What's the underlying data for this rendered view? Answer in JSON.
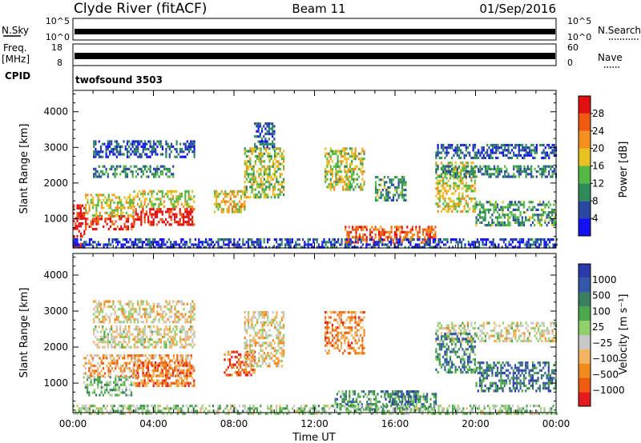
{
  "header": {
    "station": "Clyde River (fitACF)",
    "beam": "Beam 11",
    "date": "01/Sep/2016"
  },
  "strips": {
    "nsky": {
      "label": "N.Sky",
      "ticks": [
        "10^5",
        "10^0"
      ],
      "right_label": "N.Search",
      "right_ticks": [
        "10^5",
        "10^0"
      ]
    },
    "freq": {
      "label_line1": "Freq.",
      "label_line2": "[MHz]",
      "ticks": [
        "18",
        "8"
      ],
      "right_label": "Nave",
      "right_ticks": [
        "60",
        "0"
      ]
    },
    "cpid": {
      "label": "CPID",
      "value": "twofsound 3503"
    }
  },
  "colors": {
    "power": [
      "#1010f0",
      "#2848a0",
      "#2f8a5a",
      "#55b845",
      "#e8c020",
      "#f29020",
      "#f05a10",
      "#e01010"
    ],
    "velocity": [
      "#e41a1c",
      "#ee5c10",
      "#f08a1a",
      "#f5b460",
      "#c8c8c8",
      "#8fd06a",
      "#4aa84a",
      "#3a8060",
      "#3358a8",
      "#2a3aa8"
    ]
  },
  "chart_data": [
    {
      "type": "heatmap",
      "name": "power",
      "xlabel": "",
      "ylabel": "Slant Range [km]",
      "xlim": [
        0,
        24
      ],
      "ylim": [
        180,
        4600
      ],
      "yticks": [
        1000,
        2000,
        3000,
        4000
      ],
      "colorbar": {
        "label": "Power [dB]",
        "ticks": [
          4,
          8,
          12,
          16,
          20,
          24,
          28
        ],
        "range": [
          0,
          32
        ]
      },
      "regions": [
        {
          "t": [
            0.0,
            0.6
          ],
          "r": [
            180,
            1400
          ],
          "level": 0.95
        },
        {
          "t": [
            0.6,
            3.0
          ],
          "r": [
            700,
            1100
          ],
          "level": 0.9
        },
        {
          "t": [
            0.6,
            3.0
          ],
          "r": [
            1100,
            1700
          ],
          "level": 0.55
        },
        {
          "t": [
            3.0,
            6.0
          ],
          "r": [
            800,
            1300
          ],
          "level": 0.95
        },
        {
          "t": [
            3.0,
            6.0
          ],
          "r": [
            1300,
            1800
          ],
          "level": 0.55
        },
        {
          "t": [
            1.0,
            5.0
          ],
          "r": [
            2200,
            2500
          ],
          "level": 0.3
        },
        {
          "t": [
            1.0,
            6.0
          ],
          "r": [
            2700,
            3200
          ],
          "level": 0.2
        },
        {
          "t": [
            7.0,
            8.5
          ],
          "r": [
            1200,
            1800
          ],
          "level": 0.6
        },
        {
          "t": [
            8.5,
            10.5
          ],
          "r": [
            1600,
            3000
          ],
          "level": 0.5
        },
        {
          "t": [
            9.0,
            10.0
          ],
          "r": [
            3000,
            3700
          ],
          "level": 0.2
        },
        {
          "t": [
            12.5,
            14.5
          ],
          "r": [
            1800,
            3000
          ],
          "level": 0.5
        },
        {
          "t": [
            13.5,
            18.0
          ],
          "r": [
            300,
            800
          ],
          "level": 0.8
        },
        {
          "t": [
            15.0,
            16.5
          ],
          "r": [
            1500,
            2200
          ],
          "level": 0.35
        },
        {
          "t": [
            18.0,
            20.0
          ],
          "r": [
            1200,
            2600
          ],
          "level": 0.55
        },
        {
          "t": [
            18.0,
            24.0
          ],
          "r": [
            2200,
            2500
          ],
          "level": 0.3
        },
        {
          "t": [
            18.0,
            24.0
          ],
          "r": [
            2700,
            3100
          ],
          "level": 0.2
        },
        {
          "t": [
            20.0,
            24.0
          ],
          "r": [
            800,
            1500
          ],
          "level": 0.35
        },
        {
          "t": [
            0.0,
            24.0
          ],
          "r": [
            180,
            450
          ],
          "level": 0.15
        }
      ]
    },
    {
      "type": "heatmap",
      "name": "velocity",
      "xlabel": "Time UT",
      "ylabel": "Slant Range [km]",
      "xlim": [
        0,
        24
      ],
      "ylim": [
        180,
        4600
      ],
      "xticks": [
        "00:00",
        "04:00",
        "08:00",
        "12:00",
        "16:00",
        "20:00",
        "00:00"
      ],
      "yticks": [
        1000,
        2000,
        3000,
        4000
      ],
      "colorbar": {
        "label": "Velocity [m s⁻¹]",
        "ticks": [
          "1000",
          "500",
          "100",
          "25",
          "−25",
          "−100",
          "−500",
          "−1000"
        ]
      },
      "regions": [
        {
          "t": [
            0.5,
            3.0
          ],
          "r": [
            700,
            1200
          ],
          "level": 0.6
        },
        {
          "t": [
            0.5,
            6.0
          ],
          "r": [
            1200,
            1800
          ],
          "level": 0.3
        },
        {
          "t": [
            1.0,
            6.0
          ],
          "r": [
            2000,
            2600
          ],
          "level": 0.45
        },
        {
          "t": [
            1.0,
            6.0
          ],
          "r": [
            2700,
            3300
          ],
          "level": 0.4
        },
        {
          "t": [
            3.0,
            6.0
          ],
          "r": [
            900,
            1600
          ],
          "level": 0.2
        },
        {
          "t": [
            7.5,
            9.0
          ],
          "r": [
            1200,
            1900
          ],
          "level": 0.15
        },
        {
          "t": [
            8.5,
            10.5
          ],
          "r": [
            1500,
            3000
          ],
          "level": 0.4
        },
        {
          "t": [
            12.5,
            14.5
          ],
          "r": [
            1800,
            3000
          ],
          "level": 0.25
        },
        {
          "t": [
            13.0,
            18.0
          ],
          "r": [
            300,
            800
          ],
          "level": 0.7
        },
        {
          "t": [
            15.5,
            17.0
          ],
          "r": [
            400,
            800
          ],
          "level": 0.85
        },
        {
          "t": [
            18.0,
            24.0
          ],
          "r": [
            2200,
            2700
          ],
          "level": 0.45
        },
        {
          "t": [
            18.0,
            20.0
          ],
          "r": [
            1300,
            2400
          ],
          "level": 0.75
        },
        {
          "t": [
            20.0,
            24.0
          ],
          "r": [
            800,
            1600
          ],
          "level": 0.8
        },
        {
          "t": [
            0.0,
            24.0
          ],
          "r": [
            180,
            400
          ],
          "level": 0.55
        }
      ]
    }
  ]
}
